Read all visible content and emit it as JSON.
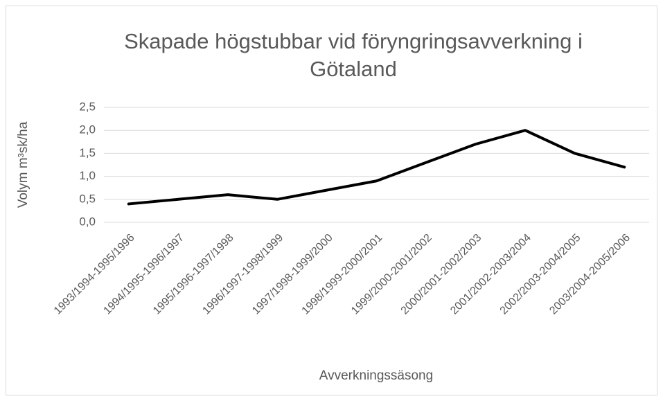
{
  "chart_data": {
    "type": "line",
    "title": "Skapade högstubbar vid föryngringsavverkning i Götaland",
    "x_label": "Avverkningssäsong",
    "y_label": "Volym m³sk/ha",
    "categories": [
      "1993/1994-1995/1996",
      "1994/1995-1996/1997",
      "1995/1996-1997/1998",
      "1996/1997-1998/1999",
      "1997/1998-1999/2000",
      "1998/1999-2000/2001",
      "1999/2000-2001/2002",
      "2000/2001-2002/2003",
      "2001/2002-2003/2004",
      "2002/2003-2004/2005",
      "2003/2004-2005/2006"
    ],
    "series": [
      {
        "name": "Volym",
        "color": "#000000",
        "values": [
          0.4,
          0.5,
          0.6,
          0.5,
          0.7,
          0.9,
          1.3,
          1.7,
          2.0,
          1.5,
          1.2
        ]
      }
    ],
    "ylim": [
      0,
      2.5
    ],
    "yticks": [
      {
        "value": 0,
        "label": "0,0"
      },
      {
        "value": 0.5,
        "label": "0,5"
      },
      {
        "value": 1,
        "label": "1,0"
      },
      {
        "value": 1.5,
        "label": "1,5"
      },
      {
        "value": 2,
        "label": "2,0"
      },
      {
        "value": 2.5,
        "label": "2,5"
      }
    ],
    "grid": true
  }
}
